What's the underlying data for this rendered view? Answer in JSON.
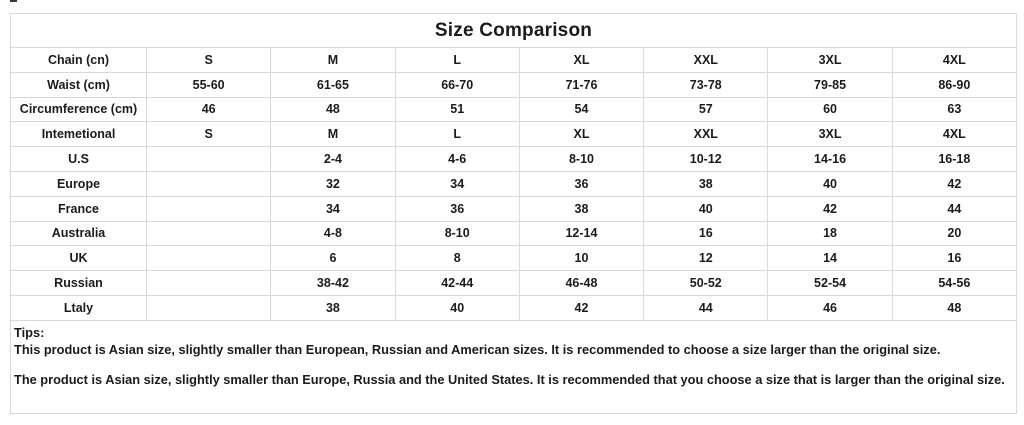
{
  "artifact": {
    "present": true
  },
  "table": {
    "title": "Size Comparison",
    "border_color": "#d9d9d9",
    "text_color": "#1b1b1b",
    "rows": [
      {
        "label": "Chain (cn)",
        "values": [
          "S",
          "M",
          "L",
          "XL",
          "XXL",
          "3XL",
          "4XL"
        ]
      },
      {
        "label": "Waist (cm)",
        "values": [
          "55-60",
          "61-65",
          "66-70",
          "71-76",
          "73-78",
          "79-85",
          "86-90"
        ]
      },
      {
        "label": "Circumference (cm)",
        "values": [
          "46",
          "48",
          "51",
          "54",
          "57",
          "60",
          "63"
        ]
      },
      {
        "label": "Intemetional",
        "values": [
          "S",
          "M",
          "L",
          "XL",
          "XXL",
          "3XL",
          "4XL"
        ]
      },
      {
        "label": "U.S",
        "values": [
          "",
          "2-4",
          "4-6",
          "8-10",
          "10-12",
          "14-16",
          "16-18"
        ]
      },
      {
        "label": "Europe",
        "values": [
          "",
          "32",
          "34",
          "36",
          "38",
          "40",
          "42"
        ]
      },
      {
        "label": "France",
        "values": [
          "",
          "34",
          "36",
          "38",
          "40",
          "42",
          "44"
        ]
      },
      {
        "label": "Australia",
        "values": [
          "",
          "4-8",
          "8-10",
          "12-14",
          "16",
          "18",
          "20"
        ]
      },
      {
        "label": "UK",
        "values": [
          "",
          "6",
          "8",
          "10",
          "12",
          "14",
          "16"
        ]
      },
      {
        "label": "Russian",
        "values": [
          "",
          "38-42",
          "42-44",
          "46-48",
          "50-52",
          "52-54",
          "54-56"
        ]
      },
      {
        "label": "Ltaly",
        "values": [
          "",
          "38",
          "40",
          "42",
          "44",
          "46",
          "48"
        ]
      }
    ]
  },
  "tips": {
    "heading": "Tips:",
    "lines": [
      "This product is Asian size, slightly smaller than European, Russian and American sizes. It is recommended to choose a size larger than the original size.",
      "The product is Asian size, slightly smaller than Europe, Russia and the United States. It is recommended that you choose a size that is larger than the original size."
    ]
  }
}
